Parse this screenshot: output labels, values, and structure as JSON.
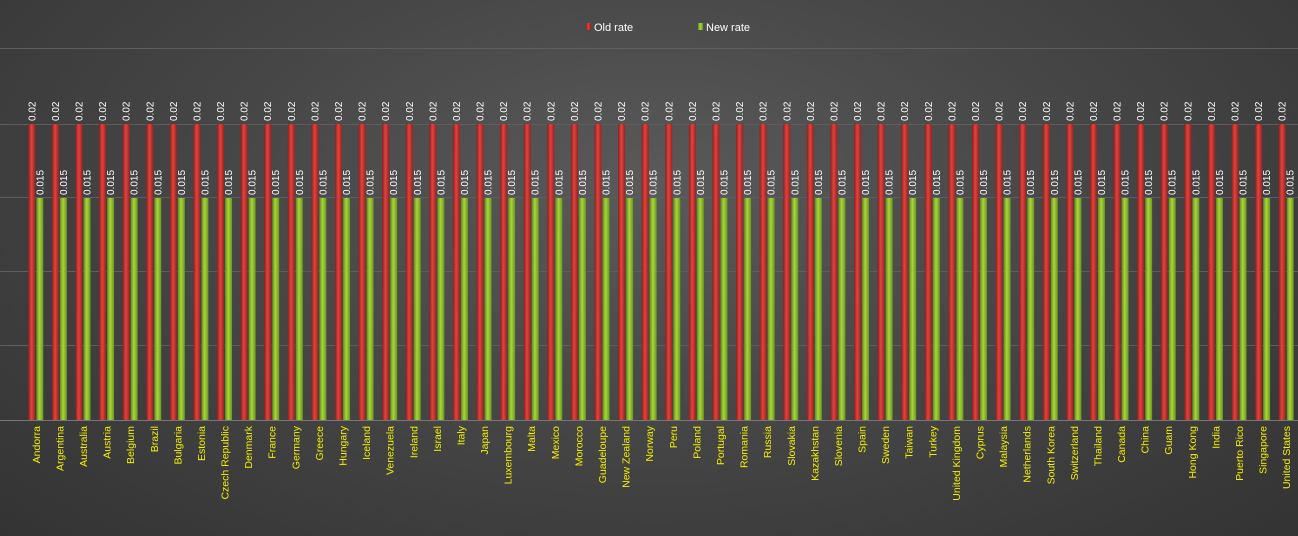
{
  "chart_data": {
    "type": "bar",
    "title": "",
    "xlabel": "",
    "ylabel": "",
    "ylim": [
      0,
      0.02
    ],
    "grid": true,
    "legend_position": "top-center",
    "categories": [
      "Andorra",
      "Argentina",
      "Australia",
      "Austria",
      "Belgium",
      "Brazil",
      "Bulgaria",
      "Estonia",
      "Czech Republic",
      "Denmark",
      "France",
      "Germany",
      "Greece",
      "Hungary",
      "Iceland",
      "Venezuela",
      "Ireland",
      "Israel",
      "Italy",
      "Japan",
      "Luxembourg",
      "Malta",
      "Mexico",
      "Morocco",
      "Guadeloupe",
      "New Zealand",
      "Norway",
      "Peru",
      "Poland",
      "Portugal",
      "Romania",
      "Russia",
      "Slovakia",
      "Kazakhstan",
      "Slovenia",
      "Spain",
      "Sweden",
      "Taiwan",
      "Turkey",
      "United Kingdom",
      "Cyprus",
      "Malaysia",
      "Netherlands",
      "South Korea",
      "Switzerland",
      "Thailand",
      "Canada",
      "China",
      "Guam",
      "Hong Kong",
      "India",
      "Puerto Rico",
      "Singapore",
      "United States"
    ],
    "series": [
      {
        "name": "Old rate",
        "color": "#c8312e",
        "label": "0.02",
        "values": [
          0.02,
          0.02,
          0.02,
          0.02,
          0.02,
          0.02,
          0.02,
          0.02,
          0.02,
          0.02,
          0.02,
          0.02,
          0.02,
          0.02,
          0.02,
          0.02,
          0.02,
          0.02,
          0.02,
          0.02,
          0.02,
          0.02,
          0.02,
          0.02,
          0.02,
          0.02,
          0.02,
          0.02,
          0.02,
          0.02,
          0.02,
          0.02,
          0.02,
          0.02,
          0.02,
          0.02,
          0.02,
          0.02,
          0.02,
          0.02,
          0.02,
          0.02,
          0.02,
          0.02,
          0.02,
          0.02,
          0.02,
          0.02,
          0.02,
          0.02,
          0.02,
          0.02,
          0.02,
          0.02
        ]
      },
      {
        "name": "New rate",
        "color": "#8fbc2d",
        "label": "0.015",
        "values": [
          0.015,
          0.015,
          0.015,
          0.015,
          0.015,
          0.015,
          0.015,
          0.015,
          0.015,
          0.015,
          0.015,
          0.015,
          0.015,
          0.015,
          0.015,
          0.015,
          0.015,
          0.015,
          0.015,
          0.015,
          0.015,
          0.015,
          0.015,
          0.015,
          0.015,
          0.015,
          0.015,
          0.015,
          0.015,
          0.015,
          0.015,
          0.015,
          0.015,
          0.015,
          0.015,
          0.015,
          0.015,
          0.015,
          0.015,
          0.015,
          0.015,
          0.015,
          0.015,
          0.015,
          0.015,
          0.015,
          0.015,
          0.015,
          0.015,
          0.015,
          0.015,
          0.015,
          0.015,
          0.015
        ]
      }
    ],
    "tick_label_color": "#f5f000",
    "gridline_color": "#5e5e5e"
  }
}
